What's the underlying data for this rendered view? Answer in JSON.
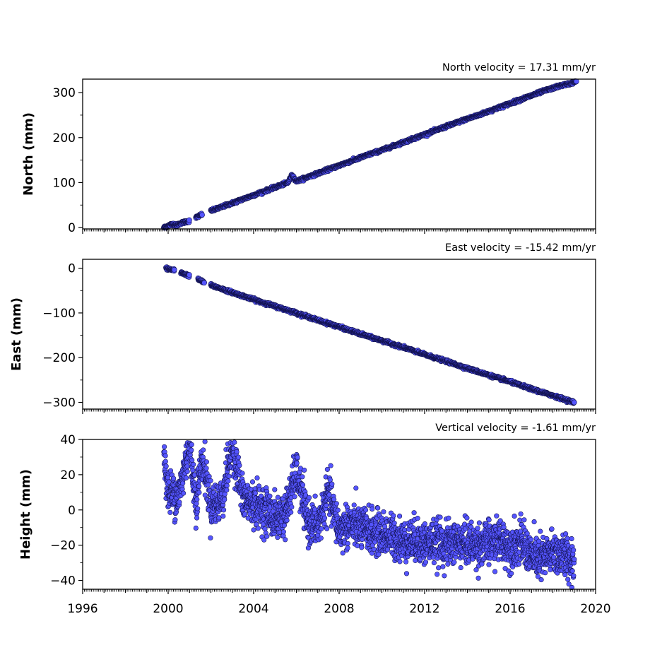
{
  "chart_data": [
    {
      "type": "scatter",
      "title": "North velocity = 17.31 mm/yr",
      "ylabel": "North (mm)",
      "xlim": [
        1996,
        2020
      ],
      "ylim": [
        -3,
        330
      ],
      "yticks": [
        0,
        100,
        200,
        300
      ],
      "series": [
        {
          "color": "#5555ff",
          "trend": {
            "velocity": 17.31,
            "start_year": 2000.3,
            "start_value": 0
          },
          "x_points": [
            1999.8,
            2000.0,
            2000.2,
            2000.4,
            2000.6,
            2001.0,
            2001.3,
            2001.6,
            2002.0,
            2002.4,
            2002.8,
            2003.2,
            2003.6,
            2004.0,
            2004.4,
            2004.8,
            2005.2,
            2005.6,
            2005.8,
            2006.0,
            2006.4,
            2006.8,
            2007.2,
            2007.6,
            2008.0,
            2008.4,
            2008.8,
            2009.2,
            2009.6,
            2010.0,
            2010.4,
            2010.8,
            2011.2,
            2011.6,
            2012.0,
            2012.4,
            2012.8,
            2013.2,
            2013.6,
            2014.0,
            2014.4,
            2014.8,
            2015.2,
            2015.6,
            2016.0,
            2016.4,
            2016.8,
            2017.2,
            2017.6,
            2018.0,
            2018.4,
            2018.8,
            2019.1
          ],
          "y_points": [
            0,
            4,
            8,
            5,
            10,
            15,
            22,
            30,
            37,
            44,
            51,
            58,
            65,
            72,
            79,
            86,
            93,
            100,
            117,
            103,
            110,
            117,
            124,
            131,
            138,
            145,
            152,
            159,
            166,
            172,
            179,
            186,
            193,
            200,
            207,
            214,
            221,
            228,
            235,
            242,
            248,
            255,
            262,
            269,
            276,
            283,
            290,
            297,
            304,
            310,
            316,
            320,
            325
          ]
        }
      ]
    },
    {
      "type": "scatter",
      "title": "East velocity = -15.42 mm/yr",
      "ylabel": "East (mm)",
      "xlim": [
        1996,
        2020
      ],
      "ylim": [
        -315,
        20
      ],
      "yticks": [
        0,
        -100,
        -200,
        -300
      ],
      "series": [
        {
          "color": "#5555ff",
          "trend": {
            "velocity": -15.42,
            "start_year": 2000.1,
            "start_value": -3
          },
          "x_points": [
            1999.9,
            2000.3,
            2000.6,
            2001.0,
            2001.4,
            2001.7,
            2002.0,
            2003.0,
            2004.0,
            2005.0,
            2006.0,
            2007.0,
            2008.0,
            2009.0,
            2010.0,
            2011.0,
            2012.0,
            2013.0,
            2014.0,
            2015.0,
            2016.0,
            2017.0,
            2018.0,
            2019.0
          ],
          "y_points": [
            0,
            -5,
            -10,
            -17,
            -25,
            -32,
            -38,
            -54,
            -70,
            -85,
            -100,
            -116,
            -131,
            -147,
            -162,
            -177,
            -193,
            -208,
            -224,
            -239,
            -254,
            -270,
            -285,
            -300
          ]
        }
      ]
    },
    {
      "type": "scatter",
      "title": "Vertical velocity = -1.61 mm/yr",
      "ylabel": "Height (mm)",
      "xlim": [
        1996,
        2020
      ],
      "ylim": [
        -45,
        40
      ],
      "yticks": [
        40,
        20,
        0,
        -20,
        -40
      ],
      "xticks": [
        1996,
        2000,
        2004,
        2008,
        2012,
        2016,
        2020
      ],
      "series": [
        {
          "color": "#5555ff",
          "trend": {
            "velocity": -1.61,
            "start_year": 2000,
            "start_value": 8
          },
          "x_points": [
            1999.8,
            2000.0,
            2000.5,
            2001.0,
            2001.3,
            2001.6,
            2002.0,
            2002.5,
            2003.0,
            2003.5,
            2004.0,
            2004.5,
            2005.0,
            2005.5,
            2006.0,
            2006.5,
            2007.0,
            2007.5,
            2008.0,
            2008.5,
            2009.0,
            2009.5,
            2010.0,
            2010.5,
            2011.0,
            2011.5,
            2012.0,
            2012.5,
            2013.0,
            2013.5,
            2014.0,
            2014.5,
            2015.0,
            2015.5,
            2016.0,
            2016.5,
            2017.0,
            2017.5,
            2018.0,
            2018.5,
            2019.0
          ],
          "y_points": [
            32,
            10,
            8,
            38,
            5,
            30,
            3,
            5,
            36,
            6,
            3,
            1,
            -5,
            -2,
            22,
            -6,
            -10,
            10,
            -12,
            -8,
            -10,
            -12,
            -14,
            -15,
            -18,
            -17,
            -19,
            -18,
            -20,
            -18,
            -19,
            -20,
            -19,
            -17,
            -21,
            -18,
            -26,
            -28,
            -24,
            -26,
            -28
          ]
        }
      ]
    }
  ]
}
